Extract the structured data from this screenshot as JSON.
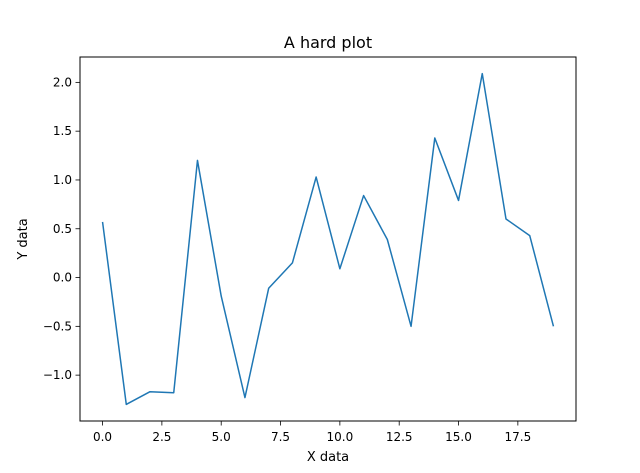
{
  "chart_data": {
    "type": "line",
    "title": "A hard plot",
    "xlabel": "X data",
    "ylabel": "Y data",
    "xlim": [
      -0.95,
      19.95
    ],
    "ylim": [
      -1.47,
      2.26
    ],
    "xticks": [
      0.0,
      2.5,
      5.0,
      7.5,
      10.0,
      12.5,
      15.0,
      17.5
    ],
    "xtick_labels": [
      "0.0",
      "2.5",
      "5.0",
      "7.5",
      "10.0",
      "12.5",
      "15.0",
      "17.5"
    ],
    "yticks": [
      -1.0,
      -0.5,
      0.0,
      0.5,
      1.0,
      1.5,
      2.0
    ],
    "ytick_labels": [
      "−1.0",
      "−0.5",
      "0.0",
      "0.5",
      "1.0",
      "1.5",
      "2.0"
    ],
    "grid": false,
    "series": [
      {
        "color": "#1f77b4",
        "x": [
          0,
          1,
          2,
          3,
          4,
          5,
          6,
          7,
          8,
          9,
          10,
          11,
          12,
          13,
          14,
          15,
          16,
          17,
          18,
          19
        ],
        "y": [
          0.57,
          -1.3,
          -1.17,
          -1.18,
          1.2,
          -0.19,
          -1.23,
          -0.11,
          0.15,
          1.03,
          0.09,
          0.84,
          0.39,
          -0.5,
          1.43,
          0.79,
          2.09,
          0.6,
          0.43,
          -0.5
        ]
      }
    ]
  }
}
